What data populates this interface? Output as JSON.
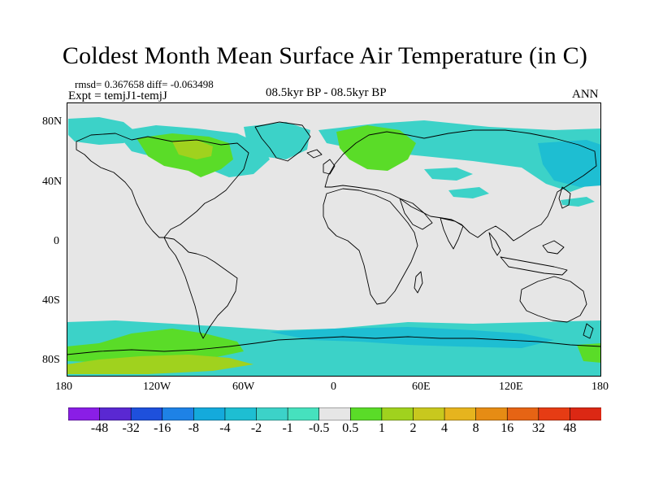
{
  "title": "Coldest Month Mean Surface Air Temperature (in C)",
  "stats": "rmsd= 0.367658  diff= -0.063498",
  "experiment": "Expt = temjJ1-temjJ",
  "period": "08.5kyr BP - 08.5kyr BP",
  "season": "ANN",
  "lat_labels": [
    "80N",
    "40N",
    "0",
    "40S",
    "80S"
  ],
  "lon_labels": [
    "180",
    "120W",
    "60W",
    "0",
    "60E",
    "120E",
    "180"
  ],
  "colorbar": {
    "levels": [
      "-48",
      "-32",
      "-16",
      "-8",
      "-4",
      "-2",
      "-1",
      "-0.5",
      "0.5",
      "1",
      "2",
      "4",
      "8",
      "16",
      "32",
      "48"
    ],
    "colors": [
      "#8a1ee6",
      "#5a28d2",
      "#1e50dc",
      "#1e82e6",
      "#14aadc",
      "#1ebed2",
      "#3cd2c8",
      "#46e1be",
      "#e6e6e6",
      "#5adc28",
      "#a0d21e",
      "#c8c81e",
      "#e6b41e",
      "#e68c14",
      "#e66414",
      "#e63c14",
      "#dc2814"
    ]
  },
  "palette": {
    "background": "#e6e6e6",
    "cool_anomaly": "#3cd2c8",
    "cyan_anomaly": "#1ebed2",
    "warm_anomaly": "#5adc28",
    "yellow_green": "#a0d21e"
  }
}
